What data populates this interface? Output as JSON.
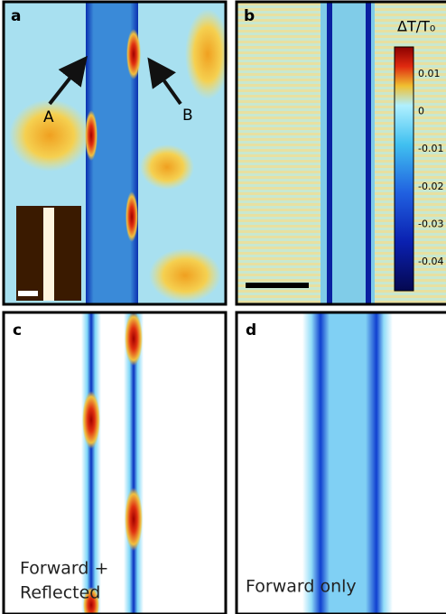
{
  "panels": [
    {
      "label": "a",
      "annotations": [
        "A",
        "B"
      ]
    },
    {
      "label": "b",
      "colorbar": {
        "title": "ΔT/T₀",
        "ticks": [
          "0.01",
          "0",
          "-0.01",
          "-0.02",
          "-0.03",
          "-0.04"
        ]
      }
    },
    {
      "label": "c",
      "caption": [
        "Forward +",
        "Reflected"
      ]
    },
    {
      "label": "d",
      "caption": [
        "Forward only"
      ]
    }
  ]
}
